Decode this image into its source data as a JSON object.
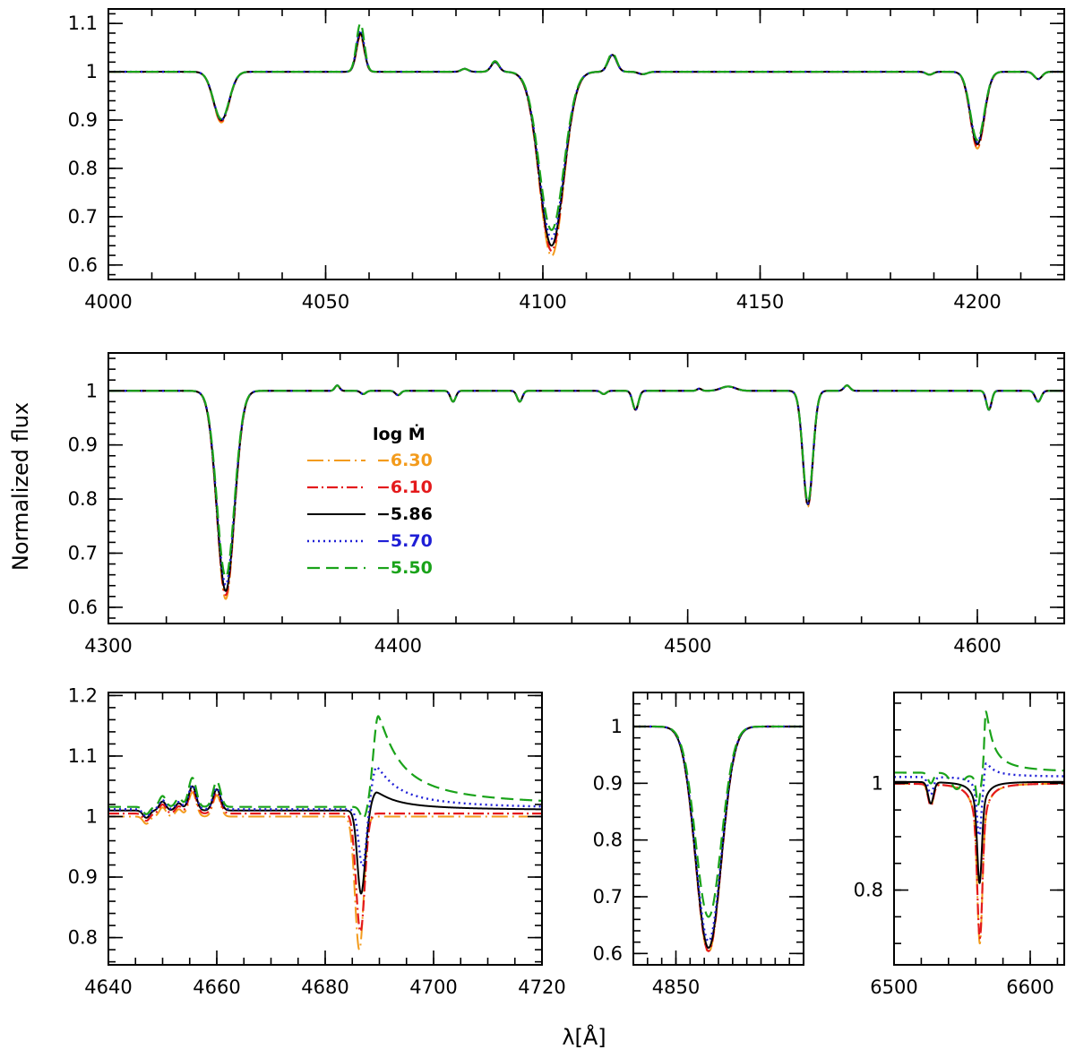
{
  "figure": {
    "ylabel": "Normalized flux",
    "xlabel": "λ[Å]"
  },
  "legend": {
    "title": "log Ṁ",
    "entries": [
      {
        "label": "−6.30",
        "color": "#f39b1c",
        "style": "dash-dot-long"
      },
      {
        "label": "−6.10",
        "color": "#e41a1c",
        "style": "dash-dot"
      },
      {
        "label": "−5.86",
        "color": "#000000",
        "style": "solid"
      },
      {
        "label": "−5.70",
        "color": "#1f1fd6",
        "style": "dotted"
      },
      {
        "label": "−5.50",
        "color": "#1aa31a",
        "style": "dashed"
      }
    ]
  },
  "chart_data": [
    {
      "type": "line",
      "panel": "top",
      "xlim": [
        4000,
        4220
      ],
      "ylim": [
        0.57,
        1.13
      ],
      "xticks": [
        4000,
        4050,
        4100,
        4150,
        4200
      ],
      "yticks": [
        0.6,
        0.7,
        0.8,
        0.9,
        1,
        1.1
      ],
      "xminor": 10,
      "yminor": 0.02,
      "lines": [
        {
          "type": "abs",
          "c": 4026,
          "d": 0.1,
          "w": 1.8,
          "k": [
            1.05,
            1.02,
            1,
            0.99,
            0.98
          ]
        },
        {
          "type": "em",
          "c": 4058,
          "d": 0.08,
          "w": 0.9,
          "k": [
            0.9,
            0.95,
            1,
            1.08,
            1.25
          ]
        },
        {
          "type": "em",
          "c": 4089,
          "d": 0.02,
          "w": 0.9,
          "k": [
            1,
            1,
            1,
            1,
            1.1
          ]
        },
        {
          "type": "abs",
          "c": 4102,
          "d": 0.36,
          "w": 2.8,
          "k": [
            1.06,
            1.03,
            1,
            0.96,
            0.91
          ]
        },
        {
          "type": "em",
          "c": 4116,
          "d": 0.035,
          "w": 1.0,
          "k": [
            1,
            1,
            1,
            1,
            1.1
          ]
        },
        {
          "type": "em",
          "c": 4082,
          "d": 0.006,
          "w": 0.8,
          "k": [
            1,
            1,
            1,
            1,
            1
          ]
        },
        {
          "type": "abs",
          "c": 4123,
          "d": 0.005,
          "w": 1.0,
          "k": [
            1,
            1,
            1,
            1,
            1
          ]
        },
        {
          "type": "abs",
          "c": 4200,
          "d": 0.15,
          "w": 1.6,
          "k": [
            1.06,
            1.04,
            1,
            0.97,
            0.94
          ]
        },
        {
          "type": "abs",
          "c": 4189,
          "d": 0.006,
          "w": 0.8,
          "k": [
            1,
            1,
            1,
            1,
            1
          ]
        },
        {
          "type": "abs",
          "c": 4214,
          "d": 0.015,
          "w": 0.9,
          "k": [
            1,
            1,
            1,
            1,
            1
          ]
        }
      ]
    },
    {
      "type": "line",
      "panel": "middle",
      "xlim": [
        4300,
        4630
      ],
      "ylim": [
        0.57,
        1.07
      ],
      "xticks": [
        4300,
        4400,
        4500,
        4600
      ],
      "yticks": [
        0.6,
        0.7,
        0.8,
        0.9,
        1
      ],
      "xminor": 20,
      "yminor": 0.02,
      "lines": [
        {
          "type": "abs",
          "c": 4340.5,
          "d": 0.37,
          "w": 3.0,
          "k": [
            1.04,
            1.02,
            1,
            0.97,
            0.93
          ]
        },
        {
          "type": "em",
          "c": 4379,
          "d": 0.01,
          "w": 0.8,
          "k": [
            1,
            1,
            1,
            1,
            1
          ]
        },
        {
          "type": "abs",
          "c": 4388,
          "d": 0.006,
          "w": 0.9,
          "k": [
            1,
            1,
            1,
            1,
            1
          ]
        },
        {
          "type": "abs",
          "c": 4400,
          "d": 0.008,
          "w": 0.9,
          "k": [
            1,
            1,
            1,
            1,
            1
          ]
        },
        {
          "type": "abs",
          "c": 4419,
          "d": 0.02,
          "w": 0.9,
          "k": [
            1,
            1,
            1,
            1,
            1
          ]
        },
        {
          "type": "abs",
          "c": 4442,
          "d": 0.02,
          "w": 0.9,
          "k": [
            1,
            1,
            1,
            1,
            1
          ]
        },
        {
          "type": "abs",
          "c": 4471,
          "d": 0.006,
          "w": 0.9,
          "k": [
            1,
            1,
            1,
            1,
            1
          ]
        },
        {
          "type": "abs",
          "c": 4482,
          "d": 0.035,
          "w": 1.0,
          "k": [
            1,
            1,
            1,
            1,
            1
          ]
        },
        {
          "type": "em",
          "c": 4504,
          "d": 0.004,
          "w": 0.8,
          "k": [
            1,
            1,
            1,
            1,
            1
          ]
        },
        {
          "type": "em",
          "c": 4514,
          "d": 0.008,
          "w": 2.5,
          "k": [
            1,
            1,
            1,
            1,
            1
          ]
        },
        {
          "type": "abs",
          "c": 4541.5,
          "d": 0.21,
          "w": 1.7,
          "k": [
            1.02,
            1.01,
            1,
            0.99,
            0.98
          ]
        },
        {
          "type": "em",
          "c": 4555,
          "d": 0.01,
          "w": 1.0,
          "k": [
            1,
            1,
            1,
            1,
            1
          ]
        },
        {
          "type": "abs",
          "c": 4604,
          "d": 0.035,
          "w": 0.9,
          "k": [
            1,
            1,
            1,
            1,
            1
          ]
        },
        {
          "type": "abs",
          "c": 4621,
          "d": 0.02,
          "w": 1.0,
          "k": [
            1,
            1,
            1,
            1,
            1
          ]
        }
      ]
    },
    {
      "type": "line",
      "panel": "bottom-left",
      "xlim": [
        4640,
        4720
      ],
      "ylim": [
        0.755,
        1.205
      ],
      "xticks": [
        4640,
        4660,
        4680,
        4700,
        4720
      ],
      "yticks": [
        0.8,
        0.9,
        1,
        1.1,
        1.2
      ],
      "xminor": 5,
      "yminor": 0.02,
      "lines": [
        {
          "type": "abs",
          "c": 4647,
          "d": 0.012,
          "w": 0.6,
          "k": [
            1,
            1,
            1,
            1,
            1
          ]
        },
        {
          "type": "em",
          "c": 4650,
          "d": 0.015,
          "w": 0.6,
          "k": [
            1,
            1,
            1,
            1,
            1.2
          ]
        },
        {
          "type": "em",
          "c": 4653,
          "d": 0.012,
          "w": 0.6,
          "k": [
            1,
            1,
            1,
            1,
            1.2
          ]
        },
        {
          "type": "em",
          "c": 4655.5,
          "d": 0.04,
          "w": 0.7,
          "k": [
            1,
            1,
            1,
            1,
            1.2
          ]
        },
        {
          "type": "em",
          "c": 4660,
          "d": 0.035,
          "w": 0.7,
          "k": [
            1,
            1,
            1,
            1,
            1.2
          ]
        }
      ],
      "he2": {
        "c": [
          4686.3,
          4686.5,
          4686.7,
          4686.9,
          4687.1
        ],
        "d": [
          0.22,
          0.195,
          0.12,
          0.095,
          0.02
        ],
        "w": [
          0.8,
          0.8,
          0.75,
          0.7,
          0.6
        ],
        "ea": [
          0.0,
          0.0,
          0.03,
          0.07,
          0.15
        ],
        "ec": [
          4689,
          4689,
          4689.5,
          4689.5,
          4689.8
        ],
        "ew": [
          4,
          4,
          4,
          4,
          4
        ],
        "base": [
          1.0,
          1.005,
          1.01,
          1.012,
          1.016
        ]
      }
    },
    {
      "type": "line",
      "panel": "bottom-middle",
      "xlim": [
        4835,
        4895
      ],
      "ylim": [
        0.58,
        1.06
      ],
      "xticks": [
        4850
      ],
      "yticks": [
        0.6,
        0.7,
        0.8,
        0.9,
        1
      ],
      "xminor": 5,
      "yminor": 0.02,
      "lines": [
        {
          "type": "abs",
          "c": 4861.5,
          "d": 0.39,
          "w": 4.5,
          "k": [
            1.02,
            1.015,
            1,
            0.97,
            0.86
          ]
        }
      ]
    },
    {
      "type": "line",
      "panel": "bottom-right",
      "xlim": [
        6500,
        6625
      ],
      "ylim": [
        0.66,
        1.17
      ],
      "xticks": [
        6500,
        6600
      ],
      "yticks": [
        0.8,
        1
      ],
      "xminor": 20,
      "yminor": 0.05,
      "lines": [
        {
          "type": "abs",
          "c": 6527,
          "d": 0.04,
          "w": 2.0,
          "k": [
            1,
            1,
            1,
            0.8,
            0.5
          ]
        }
      ],
      "halpha": {
        "c": [
          6563,
          6563,
          6562.8,
          6562.5,
          6561.8
        ],
        "d": [
          0.3,
          0.29,
          0.19,
          0.11,
          0.06
        ],
        "w": [
          1.8,
          1.8,
          1.6,
          1.5,
          1.3
        ],
        "ea": [
          0.0,
          0.0,
          0.0,
          0.04,
          0.12
        ],
        "ec": [
          6567,
          6567,
          6567,
          6567.5,
          6567.5
        ],
        "ew": [
          5,
          5,
          5,
          5,
          5
        ],
        "base": [
          1.0,
          1.0,
          1.003,
          1.012,
          1.02
        ]
      }
    }
  ]
}
